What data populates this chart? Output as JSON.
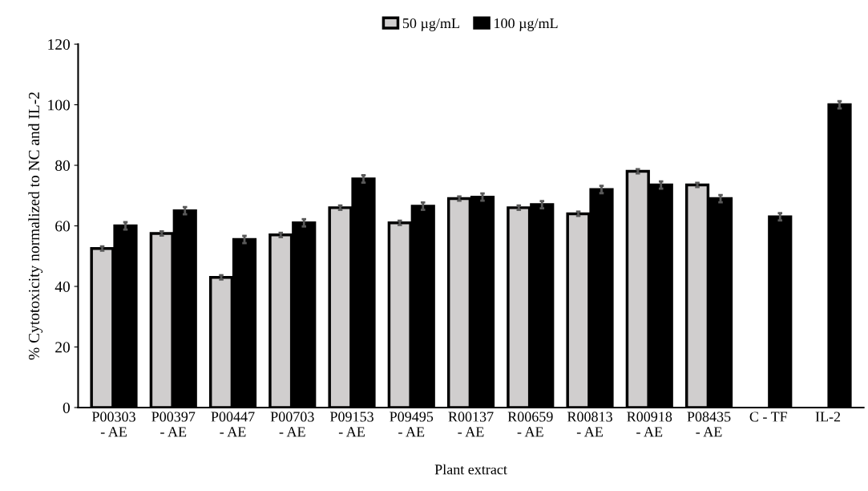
{
  "chart_data": {
    "type": "bar",
    "xlabel": "Plant extract",
    "ylabel": "% Cytotoxicity normalized to NC and IL-2",
    "categories": [
      "P00303\n- AE",
      "P00397\n- AE",
      "P00447\n- AE",
      "P00703\n- AE",
      "P09153\n- AE",
      "P09495\n- AE",
      "R00137\n- AE",
      "R00659\n- AE",
      "R00813\n- AE",
      "R00918\n- AE",
      "P08435\n- AE",
      "C - TF",
      "IL-2"
    ],
    "series": [
      {
        "name": "50 µg/mL",
        "color": "#d0cece",
        "values": [
          52.5,
          57.5,
          43,
          57,
          66,
          61,
          69,
          66,
          64,
          78,
          73.5,
          null,
          null
        ],
        "errors": [
          0.7,
          0.7,
          0.7,
          0.7,
          0.7,
          0.7,
          0.7,
          0.7,
          0.7,
          0.7,
          0.7,
          null,
          null
        ]
      },
      {
        "name": "100 µg/mL",
        "color": "#000000",
        "values": [
          60,
          65,
          55.5,
          61,
          75.5,
          66.5,
          69.5,
          67,
          72,
          73.5,
          69,
          63,
          100
        ],
        "errors": [
          1.2,
          1.2,
          1.2,
          1.2,
          1.2,
          1.2,
          1.2,
          1.2,
          1.2,
          1.2,
          1.2,
          1.2,
          1.2
        ]
      }
    ],
    "ylim": [
      0,
      120
    ],
    "yticks": [
      0,
      20,
      40,
      60,
      80,
      100,
      120
    ],
    "grid": false,
    "legend": "top"
  }
}
